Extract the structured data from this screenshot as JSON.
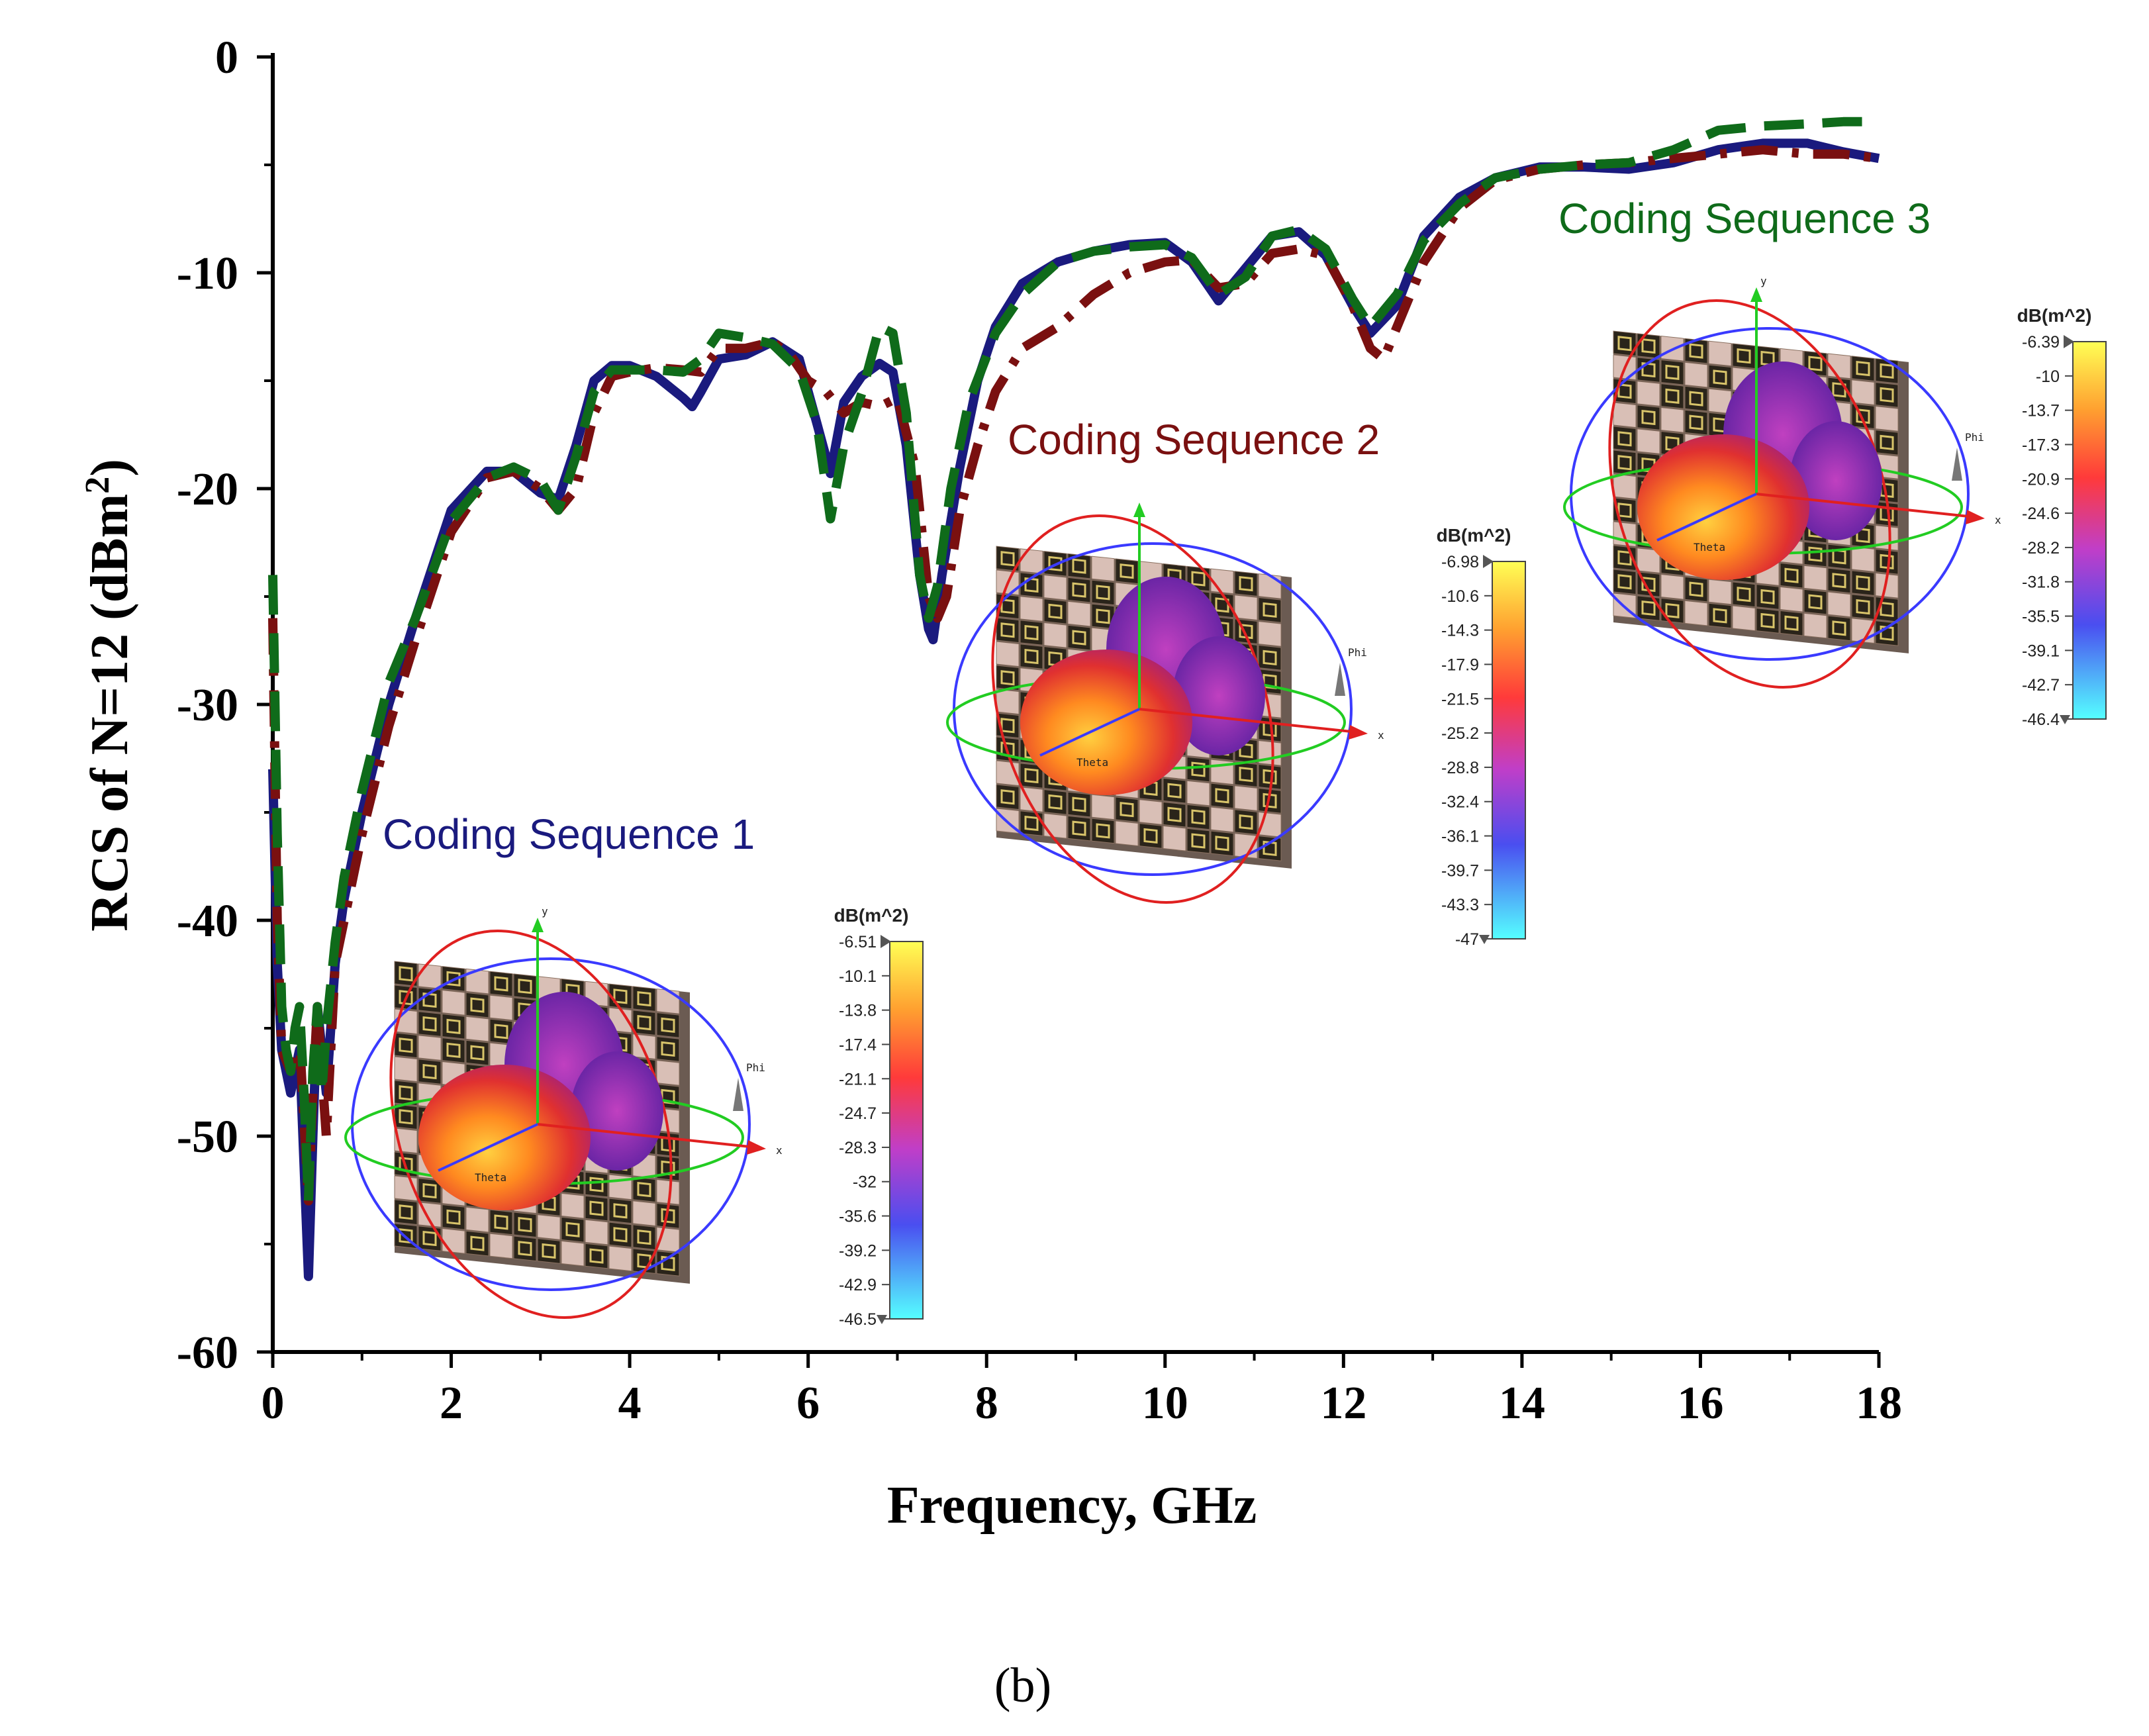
{
  "chart_data": {
    "type": "line",
    "title": "",
    "xlabel": "Frequency, GHz",
    "ylabel": "RCS of N=12 (dBm",
    "ylabel_sup": "2",
    "ylabel_end": ")",
    "xlim": [
      0,
      18
    ],
    "ylim": [
      -60,
      0
    ],
    "x_ticks": [
      0,
      2,
      4,
      6,
      8,
      10,
      12,
      14,
      16,
      18
    ],
    "y_ticks": [
      0,
      -10,
      -20,
      -30,
      -40,
      -50,
      -60
    ],
    "grid": false,
    "caption": "(b)",
    "series": [
      {
        "name": "Coding Sequence 1",
        "color": "#1a1a7e",
        "style": "solid",
        "x": [
          0.0,
          0.05,
          0.1,
          0.2,
          0.3,
          0.4,
          0.45,
          0.5,
          0.55,
          0.6,
          0.7,
          0.8,
          1.0,
          1.3,
          1.6,
          2.0,
          2.4,
          2.7,
          3.0,
          3.2,
          3.4,
          3.6,
          3.8,
          4.0,
          4.3,
          4.6,
          4.7,
          4.8,
          5.0,
          5.3,
          5.6,
          5.9,
          6.1,
          6.25,
          6.4,
          6.6,
          6.8,
          6.95,
          7.1,
          7.25,
          7.35,
          7.4,
          7.5,
          7.7,
          7.9,
          8.1,
          8.4,
          8.8,
          9.2,
          9.6,
          10.0,
          10.3,
          10.6,
          10.9,
          11.2,
          11.5,
          11.8,
          12.1,
          12.3,
          12.6,
          12.9,
          13.3,
          13.7,
          14.2,
          14.7,
          15.2,
          15.7,
          16.2,
          16.7,
          17.2,
          17.6,
          18.0
        ],
        "y": [
          -33,
          -42,
          -46,
          -48,
          -46,
          -56.5,
          -50,
          -44,
          -46,
          -48,
          -42,
          -39,
          -35,
          -30,
          -26,
          -21,
          -19.2,
          -19.2,
          -20.2,
          -20.5,
          -18,
          -15,
          -14.3,
          -14.3,
          -14.8,
          -15.8,
          -16.2,
          -15.5,
          -14,
          -13.8,
          -13.2,
          -14,
          -17,
          -19.3,
          -16,
          -14.8,
          -14.2,
          -14.6,
          -18,
          -24,
          -26.5,
          -27,
          -24,
          -19,
          -15,
          -12.5,
          -10.5,
          -9.5,
          -9,
          -8.7,
          -8.6,
          -9.5,
          -11.3,
          -9.8,
          -8.3,
          -8.1,
          -9.2,
          -11.5,
          -12.8,
          -11.5,
          -8.3,
          -6.5,
          -5.6,
          -5.1,
          -5.1,
          -5.2,
          -4.9,
          -4.3,
          -4.0,
          -4.0,
          -4.4,
          -4.7
        ]
      },
      {
        "name": "Coding Sequence 2",
        "color": "#7a1010",
        "style": "dash-dot",
        "x": [
          0.0,
          0.05,
          0.1,
          0.2,
          0.3,
          0.4,
          0.45,
          0.5,
          0.55,
          0.6,
          0.7,
          0.8,
          1.0,
          1.3,
          1.6,
          2.0,
          2.4,
          2.7,
          3.0,
          3.2,
          3.4,
          3.6,
          3.8,
          4.0,
          4.3,
          4.6,
          4.8,
          5.0,
          5.3,
          5.6,
          5.8,
          6.0,
          6.2,
          6.4,
          6.6,
          6.8,
          7.0,
          7.2,
          7.35,
          7.45,
          7.55,
          7.7,
          7.9,
          8.1,
          8.4,
          8.8,
          9.2,
          9.6,
          10.0,
          10.3,
          10.6,
          10.9,
          11.2,
          11.5,
          11.8,
          12.1,
          12.3,
          12.45,
          12.6,
          12.9,
          13.3,
          13.7,
          14.2,
          14.7,
          15.2,
          15.7,
          16.2,
          16.7,
          17.2,
          17.6,
          18.0
        ],
        "y": [
          -26,
          -40,
          -46,
          -47,
          -45.5,
          -53,
          -48,
          -44,
          -47,
          -50,
          -42,
          -40,
          -36,
          -31,
          -27,
          -22,
          -19.5,
          -19.2,
          -20,
          -21,
          -20,
          -16.5,
          -14.8,
          -14.6,
          -14.4,
          -14.5,
          -14.6,
          -13.5,
          -13.5,
          -13.2,
          -13.8,
          -15,
          -15.5,
          -16.5,
          -16,
          -16.2,
          -15.8,
          -19,
          -25,
          -26,
          -25,
          -21,
          -18,
          -15.5,
          -13.5,
          -12.5,
          -11,
          -10,
          -9.5,
          -9.4,
          -10.7,
          -10.5,
          -9.1,
          -8.9,
          -9.2,
          -11.5,
          -13.5,
          -14,
          -12.5,
          -9.5,
          -7.0,
          -5.7,
          -5.2,
          -5.0,
          -4.9,
          -4.7,
          -4.5,
          -4.3,
          -4.5,
          -4.5,
          -4.7
        ]
      },
      {
        "name": "Coding Sequence 3",
        "color": "#0f6b1a",
        "style": "dashed",
        "x": [
          0.0,
          0.05,
          0.1,
          0.15,
          0.2,
          0.25,
          0.3,
          0.35,
          0.4,
          0.45,
          0.5,
          0.55,
          0.6,
          0.7,
          0.8,
          1.0,
          1.3,
          1.6,
          2.0,
          2.4,
          2.7,
          3.0,
          3.2,
          3.4,
          3.6,
          3.8,
          4.0,
          4.3,
          4.6,
          4.8,
          5.0,
          5.3,
          5.6,
          5.9,
          6.1,
          6.25,
          6.4,
          6.6,
          6.8,
          6.95,
          7.1,
          7.25,
          7.35,
          7.45,
          7.6,
          7.8,
          8.1,
          8.4,
          8.8,
          9.2,
          9.6,
          10.0,
          10.3,
          10.6,
          10.9,
          11.2,
          11.5,
          11.8,
          12.1,
          12.3,
          12.6,
          12.9,
          13.3,
          13.7,
          14.2,
          14.7,
          15.2,
          15.7,
          16.2,
          16.7,
          17.2,
          17.6,
          18.0
        ],
        "y": [
          -24,
          -36,
          -44,
          -46,
          -47,
          -45,
          -44,
          -48,
          -53,
          -47,
          -44,
          -48,
          -45,
          -41,
          -38,
          -34,
          -29,
          -26,
          -21.5,
          -19.5,
          -19.0,
          -19.6,
          -21,
          -18.5,
          -15.5,
          -14.5,
          -14.5,
          -14.5,
          -14.6,
          -14.0,
          -12.8,
          -13.0,
          -13.3,
          -14.5,
          -17,
          -21.4,
          -18,
          -15.6,
          -12.5,
          -12.8,
          -16.5,
          -24,
          -26,
          -24.5,
          -20,
          -16,
          -12.8,
          -11.0,
          -9.5,
          -9.0,
          -8.8,
          -8.7,
          -9.3,
          -11.0,
          -10.2,
          -8.3,
          -8.0,
          -8.9,
          -11.2,
          -12.5,
          -11.0,
          -8.5,
          -6.8,
          -5.6,
          -5.2,
          -5.0,
          -4.9,
          -4.3,
          -3.4,
          -3.2,
          -3.1,
          -3.0,
          -3.0
        ]
      }
    ]
  },
  "insets": [
    {
      "label": "Coding Sequence 1",
      "label_color": "#1a1a7e",
      "cbar_title": "dB(m^2)",
      "cbar_ticks": [
        "-6.51",
        "-10.1",
        "-13.8",
        "-17.4",
        "-21.1",
        "-24.7",
        "-28.3",
        "-32",
        "-35.6",
        "-39.2",
        "-42.9",
        "-46.5"
      ],
      "axis_x": "x",
      "axis_y": "y",
      "axis_phi": "Phi",
      "axis_theta": "Theta"
    },
    {
      "label": "Coding Sequence 2",
      "label_color": "#7a1010",
      "cbar_title": "dB(m^2)",
      "cbar_ticks": [
        "-6.98",
        "-10.6",
        "-14.3",
        "-17.9",
        "-21.5",
        "-25.2",
        "-28.8",
        "-32.4",
        "-36.1",
        "-39.7",
        "-43.3",
        "-47"
      ],
      "axis_x": "x",
      "axis_y": "",
      "axis_phi": "Phi",
      "axis_theta": "Theta"
    },
    {
      "label": "Coding Sequence 3",
      "label_color": "#0f6b1a",
      "cbar_title": "dB(m^2)",
      "cbar_ticks": [
        "-6.39",
        "-10",
        "-13.7",
        "-17.3",
        "-20.9",
        "-24.6",
        "-28.2",
        "-31.8",
        "-35.5",
        "-39.1",
        "-42.7",
        "-46.4"
      ],
      "axis_x": "x",
      "axis_y": "y",
      "axis_phi": "Phi",
      "axis_theta": "Theta"
    }
  ]
}
